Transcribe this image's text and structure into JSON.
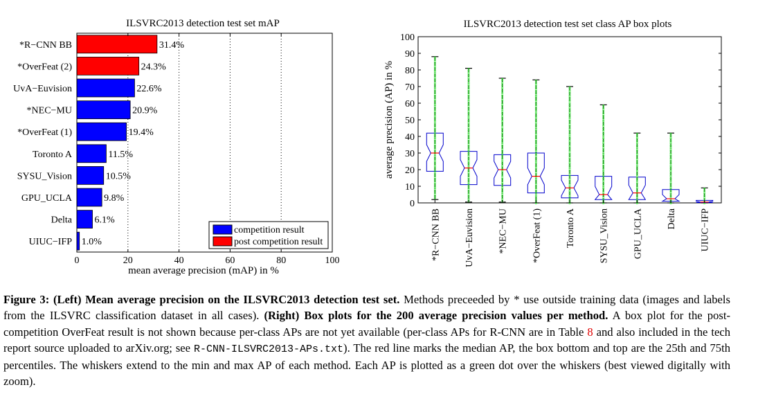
{
  "chart_data": [
    {
      "type": "bar",
      "orientation": "horizontal",
      "title": "ILSVRC2013 detection test set mAP",
      "xlabel": "mean average precision (mAP) in %",
      "ylabel": "",
      "xlim": [
        0,
        100
      ],
      "xticks": [
        0,
        20,
        40,
        60,
        80,
        100
      ],
      "grid": "vertical dotted",
      "categories": [
        "*R−CNN BB",
        "*OverFeat (2)",
        "UvA−Euvision",
        "*NEC−MU",
        "*OverFeat (1)",
        "Toronto A",
        "SYSU_Vision",
        "GPU_UCLA",
        "Delta",
        "UIUC−IFP"
      ],
      "values": [
        31.4,
        24.3,
        22.6,
        20.9,
        19.4,
        11.5,
        10.5,
        9.8,
        6.1,
        1.0
      ],
      "value_labels": [
        "31.4%",
        "24.3%",
        "22.6%",
        "20.9%",
        "19.4%",
        "11.5%",
        "10.5%",
        "9.8%",
        "6.1%",
        "1.0%"
      ],
      "groups": [
        "post",
        "post",
        "comp",
        "comp",
        "comp",
        "comp",
        "comp",
        "comp",
        "comp",
        "comp"
      ],
      "legend": {
        "position": "bottom-right",
        "entries": [
          {
            "key": "comp",
            "label": "competition result",
            "color": "#0000ff"
          },
          {
            "key": "post",
            "label": "post competition result",
            "color": "#ff0000"
          }
        ]
      }
    },
    {
      "type": "box",
      "title": "ILSVRC2013 detection test set class AP box plots",
      "ylabel": "average precision (AP) in %",
      "xlabel": "",
      "ylim": [
        0,
        100
      ],
      "yticks": [
        0,
        10,
        20,
        30,
        40,
        50,
        60,
        70,
        80,
        90,
        100
      ],
      "categories": [
        "*R−CNN BB",
        "UvA−Euvision",
        "*NEC−MU",
        "*OverFeat (1)",
        "Toronto A",
        "SYSU_Vision",
        "GPU_UCLA",
        "Delta",
        "UIUC−IFP"
      ],
      "boxes": [
        {
          "min": 2,
          "q1": 19,
          "median": 30,
          "q3": 42,
          "max": 88
        },
        {
          "min": 0.5,
          "q1": 11,
          "median": 21,
          "q3": 31,
          "max": 81
        },
        {
          "min": 0.5,
          "q1": 10.5,
          "median": 20,
          "q3": 29,
          "max": 75
        },
        {
          "min": 0,
          "q1": 6,
          "median": 16,
          "q3": 30,
          "max": 74
        },
        {
          "min": 0,
          "q1": 3,
          "median": 9,
          "q3": 16.5,
          "max": 70
        },
        {
          "min": 0,
          "q1": 2,
          "median": 5,
          "q3": 16,
          "max": 59
        },
        {
          "min": 0,
          "q1": 2,
          "median": 6,
          "q3": 15.5,
          "max": 42
        },
        {
          "min": 0,
          "q1": 1,
          "median": 2.5,
          "q3": 8,
          "max": 42
        },
        {
          "min": 0,
          "q1": 0.2,
          "median": 0.5,
          "q3": 1.5,
          "max": 9
        }
      ],
      "colors": {
        "box": "#0000cc",
        "whisker": "#000000",
        "points": "#33dd33",
        "median": "#ff0000"
      }
    }
  ],
  "caption": {
    "lead": "Figure 3: (Left) Mean average precision on the ILSVRC2013 detection test set.",
    "t1": " Methods preceeded by * use outside training data (images and labels from the ILSVRC classification dataset in all cases). ",
    "bold2": "(Right) Box plots for the 200 average precision values per method.",
    "t2": " A box plot for the post-competition OverFeat result is not shown because per-class APs are not yet available (per-class APs for R-CNN are in Table ",
    "ref": "8",
    "t3": " and also included in the tech report source uploaded to arXiv.org; see ",
    "file": "R-CNN-ILSVRC2013-APs.txt",
    "t4": "). The red line marks the median AP, the box bottom and top are the 25th and 75th percentiles. The whiskers extend to the min and max AP of each method. Each AP is plotted as a green dot over the whiskers (best viewed digitally with zoom)."
  }
}
